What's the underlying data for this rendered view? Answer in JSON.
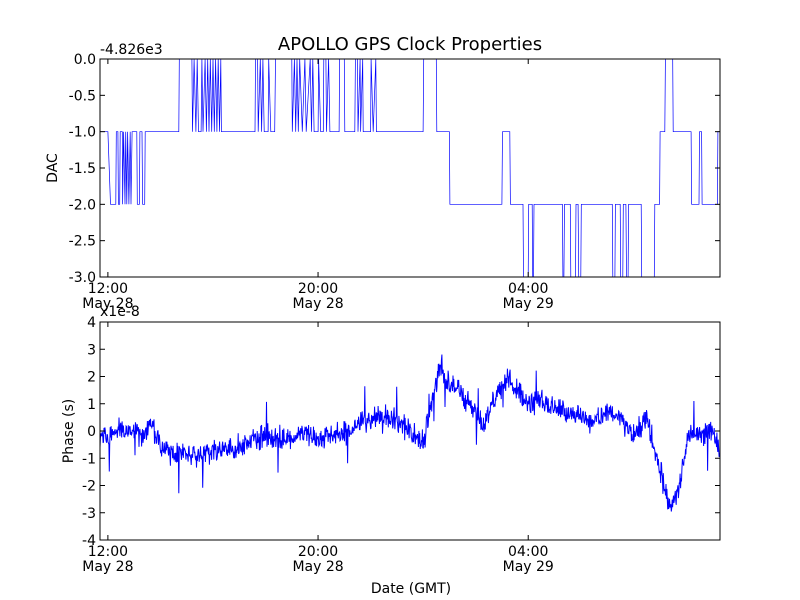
{
  "figure_title": "APOLLO GPS Clock Properties",
  "chart_data": [
    {
      "type": "line",
      "title": "",
      "ylabel": "DAC",
      "xlabel": "",
      "offset_label": "-4.826e3",
      "x_unit": "hours since May 28 00:00 GMT",
      "xlim": [
        11.7,
        35.3
      ],
      "ylim": [
        -3.0,
        0.0
      ],
      "x_ticks": [
        {
          "x": 12,
          "time": "12:00",
          "date": "May 28"
        },
        {
          "x": 20,
          "time": "20:00",
          "date": "May 28"
        },
        {
          "x": 28,
          "time": "04:00",
          "date": "May 29"
        }
      ],
      "y_tick_labels": [
        "0.0",
        "-0.5",
        "-1.0",
        "-1.5",
        "-2.0",
        "-2.5",
        "-3.0"
      ],
      "y_ticks": [
        0.0,
        -0.5,
        -1.0,
        -1.5,
        -2.0,
        -2.5,
        -3.0
      ],
      "grid": false,
      "series": [
        {
          "color": "#0000ff",
          "points": [
            [
              11.7,
              -1
            ],
            [
              12.0,
              -1
            ],
            [
              12.1,
              -2
            ],
            [
              12.3,
              -2
            ],
            [
              12.32,
              -1
            ],
            [
              12.38,
              -1
            ],
            [
              12.4,
              -2
            ],
            [
              12.45,
              -2
            ],
            [
              12.47,
              -1
            ],
            [
              12.55,
              -1
            ],
            [
              12.56,
              -2
            ],
            [
              12.6,
              -1
            ],
            [
              12.65,
              -2
            ],
            [
              12.68,
              -1
            ],
            [
              12.72,
              -2
            ],
            [
              12.75,
              -1
            ],
            [
              12.8,
              -2
            ],
            [
              12.85,
              -1
            ],
            [
              12.88,
              -2
            ],
            [
              12.92,
              -1
            ],
            [
              13.1,
              -1
            ],
            [
              13.12,
              -2
            ],
            [
              13.2,
              -2
            ],
            [
              13.22,
              -1
            ],
            [
              13.3,
              -1
            ],
            [
              13.32,
              -2
            ],
            [
              13.4,
              -2
            ],
            [
              13.42,
              -1
            ],
            [
              14.7,
              -1
            ],
            [
              14.72,
              0
            ],
            [
              15.2,
              0
            ],
            [
              15.22,
              -1
            ],
            [
              15.28,
              0
            ],
            [
              15.35,
              -1
            ],
            [
              15.4,
              0
            ],
            [
              15.45,
              -1
            ],
            [
              15.55,
              -1
            ],
            [
              15.58,
              0
            ],
            [
              15.62,
              -1
            ],
            [
              15.7,
              0
            ],
            [
              15.75,
              -1
            ],
            [
              15.8,
              0
            ],
            [
              15.85,
              -1
            ],
            [
              15.9,
              0
            ],
            [
              15.95,
              -1
            ],
            [
              16.0,
              0
            ],
            [
              16.05,
              -1
            ],
            [
              16.1,
              0
            ],
            [
              16.15,
              -1
            ],
            [
              16.2,
              0
            ],
            [
              16.25,
              -1
            ],
            [
              16.3,
              0
            ],
            [
              16.32,
              -1
            ],
            [
              17.6,
              -1
            ],
            [
              17.62,
              0
            ],
            [
              17.7,
              0
            ],
            [
              17.72,
              -1
            ],
            [
              17.8,
              0
            ],
            [
              17.85,
              -1
            ],
            [
              17.9,
              0
            ],
            [
              17.95,
              -1
            ],
            [
              18.1,
              -1
            ],
            [
              18.12,
              0
            ],
            [
              18.2,
              -1
            ],
            [
              18.35,
              -1
            ],
            [
              18.38,
              0
            ],
            [
              19.0,
              0
            ],
            [
              19.02,
              -1
            ],
            [
              19.1,
              0
            ],
            [
              19.15,
              -1
            ],
            [
              19.2,
              0
            ],
            [
              19.25,
              -1
            ],
            [
              19.3,
              0
            ],
            [
              19.4,
              -1
            ],
            [
              19.5,
              0
            ],
            [
              19.55,
              -1
            ],
            [
              19.7,
              0
            ],
            [
              19.75,
              -1
            ],
            [
              19.8,
              0
            ],
            [
              19.85,
              -1
            ],
            [
              20.0,
              -1
            ],
            [
              20.02,
              0
            ],
            [
              20.1,
              -1
            ],
            [
              20.2,
              -1
            ],
            [
              20.22,
              0
            ],
            [
              20.3,
              0
            ],
            [
              20.32,
              -1
            ],
            [
              20.4,
              0
            ],
            [
              20.45,
              -1
            ],
            [
              20.8,
              -1
            ],
            [
              20.82,
              0
            ],
            [
              21.0,
              0
            ],
            [
              21.02,
              -1
            ],
            [
              21.4,
              -1
            ],
            [
              21.42,
              0
            ],
            [
              21.5,
              0
            ],
            [
              21.52,
              -1
            ],
            [
              21.6,
              0
            ],
            [
              21.62,
              -1
            ],
            [
              21.7,
              0
            ],
            [
              21.72,
              -1
            ],
            [
              22.0,
              -1
            ],
            [
              22.02,
              0
            ],
            [
              22.1,
              -1
            ],
            [
              22.2,
              0
            ],
            [
              22.22,
              -1
            ],
            [
              24.0,
              -1
            ],
            [
              24.02,
              0
            ],
            [
              24.5,
              0
            ],
            [
              24.52,
              -1
            ],
            [
              25.0,
              -1
            ],
            [
              25.02,
              -2
            ],
            [
              27.0,
              -2
            ],
            [
              27.02,
              -1
            ],
            [
              27.3,
              -1
            ],
            [
              27.32,
              -2
            ],
            [
              27.8,
              -2
            ],
            [
              27.82,
              -3
            ],
            [
              28.0,
              -3
            ],
            [
              28.02,
              -2
            ],
            [
              28.15,
              -2
            ],
            [
              28.17,
              -3
            ],
            [
              28.2,
              -3
            ],
            [
              28.22,
              -2
            ],
            [
              29.3,
              -2
            ],
            [
              29.32,
              -3
            ],
            [
              29.36,
              -3
            ],
            [
              29.38,
              -2
            ],
            [
              29.6,
              -2
            ],
            [
              29.62,
              -3
            ],
            [
              29.8,
              -3
            ],
            [
              29.82,
              -2
            ],
            [
              29.9,
              -2
            ],
            [
              29.92,
              -3
            ],
            [
              30.0,
              -3
            ],
            [
              30.02,
              -2
            ],
            [
              31.2,
              -2
            ],
            [
              31.22,
              -3
            ],
            [
              31.3,
              -3
            ],
            [
              31.32,
              -2
            ],
            [
              31.5,
              -2
            ],
            [
              31.52,
              -3
            ],
            [
              31.6,
              -3
            ],
            [
              31.62,
              -2
            ],
            [
              31.72,
              -2
            ],
            [
              31.74,
              -3
            ],
            [
              31.8,
              -3
            ],
            [
              31.82,
              -2
            ],
            [
              32.3,
              -2
            ],
            [
              32.32,
              -3
            ],
            [
              32.8,
              -3
            ],
            [
              32.82,
              -2
            ],
            [
              33.0,
              -2
            ],
            [
              33.02,
              -1
            ],
            [
              33.2,
              -1
            ],
            [
              33.22,
              0
            ],
            [
              33.5,
              0
            ],
            [
              33.52,
              -1
            ],
            [
              34.2,
              -1
            ],
            [
              34.22,
              -2
            ],
            [
              34.5,
              -2
            ],
            [
              34.52,
              -1
            ],
            [
              34.6,
              -1
            ],
            [
              34.62,
              -2
            ],
            [
              35.2,
              -2
            ],
            [
              35.22,
              -1
            ],
            [
              35.3,
              -1
            ]
          ]
        }
      ]
    },
    {
      "type": "line",
      "title": "",
      "ylabel": "Phase (s)",
      "xlabel": "Date (GMT)",
      "offset_label": "x1e-8",
      "x_unit": "hours since May 28 00:00 GMT",
      "xlim": [
        11.7,
        35.3
      ],
      "ylim": [
        -4,
        4
      ],
      "x_ticks": [
        {
          "x": 12,
          "time": "12:00",
          "date": "May 28"
        },
        {
          "x": 20,
          "time": "20:00",
          "date": "May 28"
        },
        {
          "x": 28,
          "time": "04:00",
          "date": "May 29"
        }
      ],
      "y_tick_labels": [
        "4",
        "3",
        "2",
        "1",
        "0",
        "-1",
        "-2",
        "-3",
        "-4"
      ],
      "y_ticks": [
        4,
        3,
        2,
        1,
        0,
        -1,
        -2,
        -3,
        -4
      ],
      "grid": false,
      "noise_amplitude": 0.35,
      "series": [
        {
          "color": "#0000ff",
          "envelope": [
            [
              11.7,
              -0.4
            ],
            [
              12.0,
              -0.2
            ],
            [
              12.5,
              0.1
            ],
            [
              13.0,
              0.0
            ],
            [
              13.3,
              -0.2
            ],
            [
              13.5,
              0.1
            ],
            [
              13.7,
              0.2
            ],
            [
              14.0,
              -0.6
            ],
            [
              14.5,
              -0.9
            ],
            [
              15.0,
              -0.8
            ],
            [
              15.5,
              -0.9
            ],
            [
              16.0,
              -0.7
            ],
            [
              16.5,
              -0.8
            ],
            [
              17.0,
              -0.5
            ],
            [
              17.5,
              -0.4
            ],
            [
              18.0,
              -0.2
            ],
            [
              18.5,
              -0.3
            ],
            [
              19.0,
              -0.2
            ],
            [
              19.5,
              -0.1
            ],
            [
              20.0,
              -0.3
            ],
            [
              20.5,
              -0.2
            ],
            [
              21.0,
              -0.1
            ],
            [
              21.5,
              0.2
            ],
            [
              22.0,
              0.4
            ],
            [
              22.5,
              0.6
            ],
            [
              23.0,
              0.3
            ],
            [
              23.5,
              0.0
            ],
            [
              24.0,
              -0.5
            ],
            [
              24.3,
              0.8
            ],
            [
              24.6,
              2.3
            ],
            [
              25.0,
              1.8
            ],
            [
              25.3,
              1.5
            ],
            [
              25.6,
              1.2
            ],
            [
              25.9,
              0.9
            ],
            [
              26.3,
              0.1
            ],
            [
              26.7,
              1.2
            ],
            [
              27.0,
              1.6
            ],
            [
              27.3,
              1.9
            ],
            [
              27.6,
              1.5
            ],
            [
              28.0,
              1.0
            ],
            [
              28.5,
              1.1
            ],
            [
              29.0,
              0.9
            ],
            [
              29.5,
              0.7
            ],
            [
              30.0,
              0.5
            ],
            [
              30.5,
              0.3
            ],
            [
              31.0,
              0.7
            ],
            [
              31.5,
              0.5
            ],
            [
              32.0,
              -0.2
            ],
            [
              32.5,
              0.5
            ],
            [
              32.9,
              -1.0
            ],
            [
              33.1,
              -1.6
            ],
            [
              33.3,
              -2.6
            ],
            [
              33.5,
              -2.8
            ],
            [
              33.7,
              -2.2
            ],
            [
              33.9,
              -1.2
            ],
            [
              34.1,
              -0.2
            ],
            [
              34.4,
              0.0
            ],
            [
              34.7,
              -0.1
            ],
            [
              35.0,
              0.0
            ],
            [
              35.3,
              -0.8
            ]
          ]
        }
      ]
    }
  ]
}
